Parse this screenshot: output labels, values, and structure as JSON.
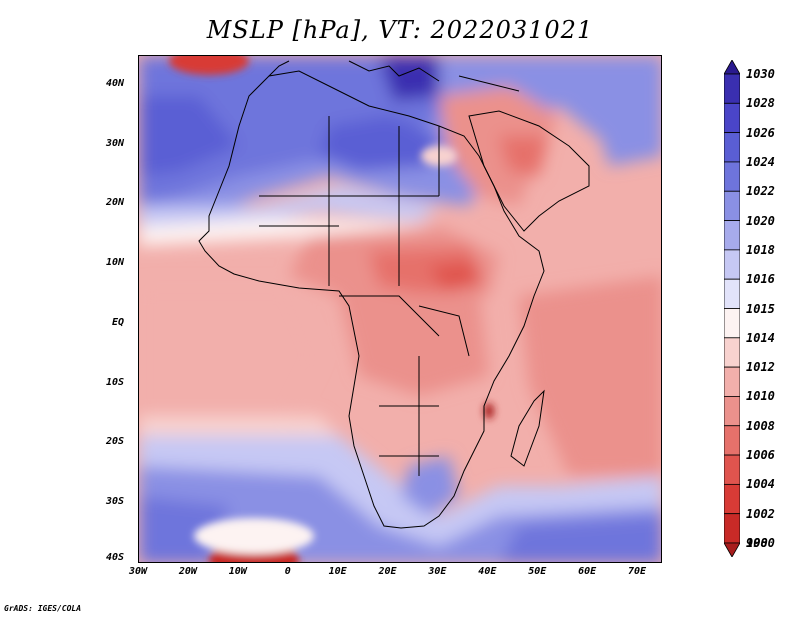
{
  "title": "MSLP [hPa], VT: 2022031021",
  "credit": "GrADS: IGES/COLA",
  "map": {
    "projection": "lat-lon",
    "lon_range": [
      -30,
      75
    ],
    "lat_range": [
      -40,
      45
    ],
    "x_ticks": [
      {
        "lon": -30,
        "label": "30W"
      },
      {
        "lon": -20,
        "label": "20W"
      },
      {
        "lon": -10,
        "label": "10W"
      },
      {
        "lon": 0,
        "label": "0"
      },
      {
        "lon": 10,
        "label": "10E"
      },
      {
        "lon": 20,
        "label": "20E"
      },
      {
        "lon": 30,
        "label": "30E"
      },
      {
        "lon": 40,
        "label": "40E"
      },
      {
        "lon": 50,
        "label": "50E"
      },
      {
        "lon": 60,
        "label": "60E"
      },
      {
        "lon": 70,
        "label": "70E"
      }
    ],
    "y_ticks": [
      {
        "lat": 40,
        "label": "40N"
      },
      {
        "lat": 30,
        "label": "30N"
      },
      {
        "lat": 20,
        "label": "20N"
      },
      {
        "lat": 10,
        "label": "10N"
      },
      {
        "lat": 0,
        "label": "EQ"
      },
      {
        "lat": -10,
        "label": "10S"
      },
      {
        "lat": -20,
        "label": "20S"
      },
      {
        "lat": -30,
        "label": "30S"
      },
      {
        "lat": -40,
        "label": "40S"
      }
    ],
    "colors": {
      "land_line": "#000000",
      "bg": "#f7c8c5"
    }
  },
  "colorbar": {
    "levels": [
      {
        "label": "1030",
        "color": "#2a1a8f"
      },
      {
        "label": "1028",
        "color": "#3a2fb0"
      },
      {
        "label": "1026",
        "color": "#4a45c8"
      },
      {
        "label": "1024",
        "color": "#5a5ed4"
      },
      {
        "label": "1022",
        "color": "#6e74dc"
      },
      {
        "label": "1020",
        "color": "#8a90e4"
      },
      {
        "label": "1018",
        "color": "#a7abec"
      },
      {
        "label": "1016",
        "color": "#c6c8f4"
      },
      {
        "label": "1015",
        "color": "#e2e3fa"
      },
      {
        "label": "1014",
        "color": "#fdf3f2"
      },
      {
        "label": "1012",
        "color": "#f8d2cf"
      },
      {
        "label": "1010",
        "color": "#f2afab"
      },
      {
        "label": "1008",
        "color": "#eb918c"
      },
      {
        "label": "1006",
        "color": "#e6716b"
      },
      {
        "label": "1004",
        "color": "#e0544e"
      },
      {
        "label": "1002",
        "color": "#d83b36"
      },
      {
        "label": "1000",
        "color": "#c82a27"
      },
      {
        "label": "998",
        "color": "#a81d1d"
      }
    ]
  }
}
